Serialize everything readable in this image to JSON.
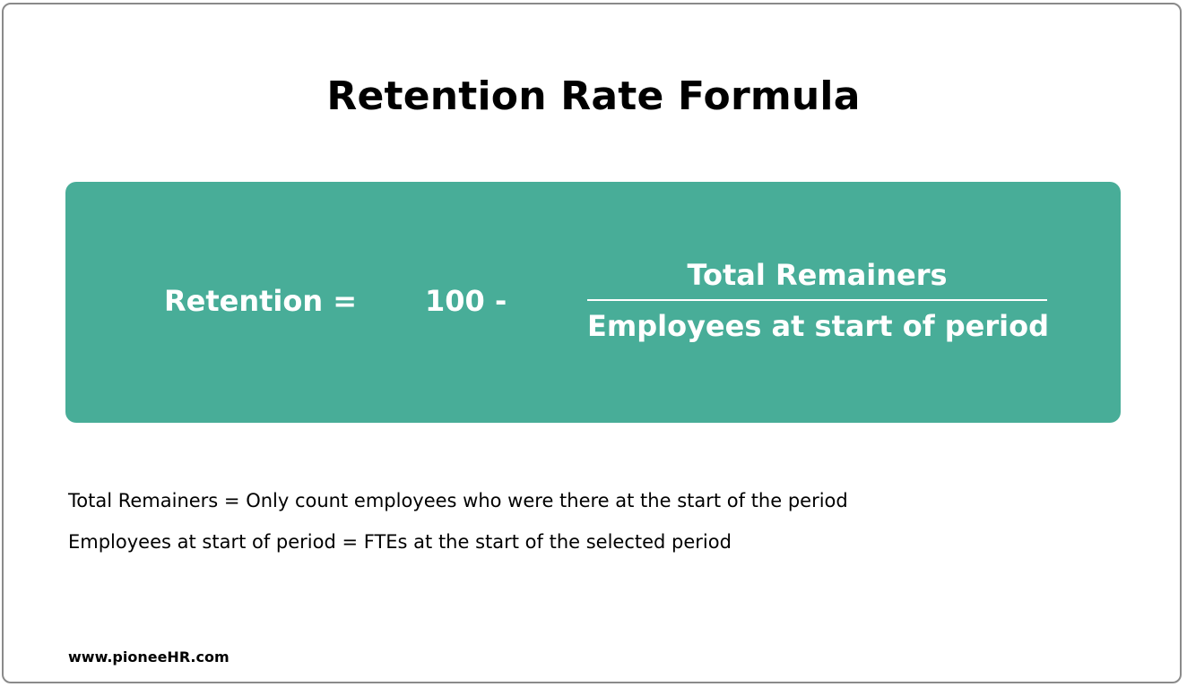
{
  "title": "Retention Rate Formula",
  "formula": {
    "lhs": "Retention =",
    "constant": "100 -",
    "numerator": "Total Remainers",
    "denominator": "Employees at start of period",
    "background_color": "#48ad98",
    "text_color": "#ffffff"
  },
  "definitions": [
    "Total Remainers = Only count employees who were there at the start of the period",
    "Employees at start of period = FTEs at the start of the selected period"
  ],
  "footer": {
    "url": "www.pioneeHR.com"
  }
}
